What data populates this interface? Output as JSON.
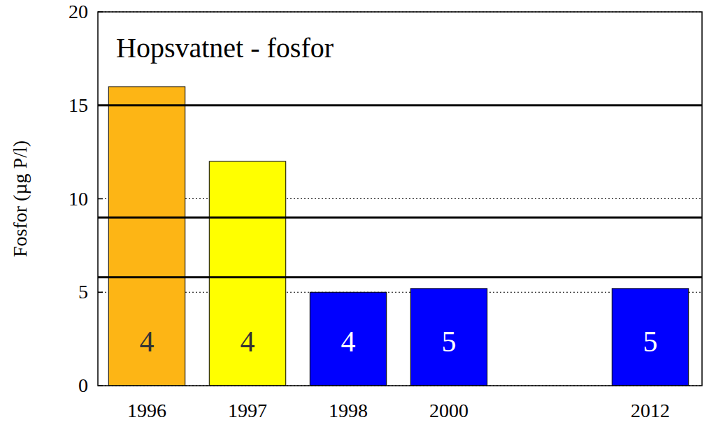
{
  "chart_data": {
    "type": "bar",
    "title": "Hopsvatnet - fosfor",
    "y_label": "Fosfor (µg P/l)",
    "categories": [
      "1996",
      "1997",
      "1998",
      "2000",
      null,
      "2012"
    ],
    "values": [
      16,
      12,
      5,
      5.2,
      null,
      5.2
    ],
    "colors": [
      "#fdb515",
      "#ffff00",
      "#0000ff",
      "#0000ff",
      null,
      "#0000ff"
    ],
    "sample_counts": [
      4,
      4,
      4,
      5,
      null,
      5
    ],
    "thresholds": [
      15,
      9,
      5.8
    ],
    "ylim": [
      0,
      20
    ],
    "yticks": [
      0,
      5,
      10,
      15,
      20
    ],
    "grid": true
  }
}
